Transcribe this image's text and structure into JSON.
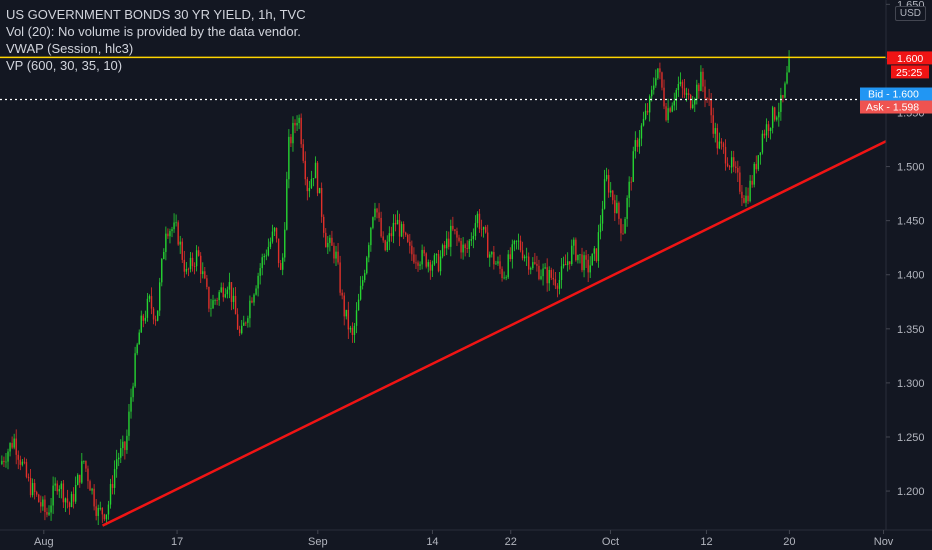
{
  "legend": {
    "title": "US GOVERNMENT BONDS 30 YR YIELD, 1h, TVC",
    "vol": "Vol (20): No volume is provided by the data vendor.",
    "vwap": "VWAP (Session, hlc3)",
    "vp": "VP (600, 30, 35, 10)"
  },
  "currency": "USD",
  "price_tags": {
    "last": "1.600",
    "countdown": "25:25",
    "bid": "Bid - 1.600",
    "ask": "Ask - 1.598"
  },
  "colors": {
    "background": "#131722",
    "up": "#26d432",
    "down": "#e0302a",
    "trendline": "#f01414",
    "hline": "#ffd400",
    "bid": "#2196f3",
    "ask": "#ef5350"
  },
  "chart_data": {
    "type": "candlestick",
    "symbol": "US GOVERNMENT BONDS 30 YR YIELD",
    "interval": "1h",
    "y_ticks": [
      "1.200",
      "1.250",
      "1.300",
      "1.350",
      "1.400",
      "1.450",
      "1.500",
      "1.550",
      "1.600",
      "1.650"
    ],
    "x_ticks": [
      {
        "label": "Aug",
        "position": 0.047
      },
      {
        "label": "17",
        "position": 0.19
      },
      {
        "label": "Sep",
        "position": 0.341
      },
      {
        "label": "14",
        "position": 0.464
      },
      {
        "label": "22",
        "position": 0.548
      },
      {
        "label": "Oct",
        "position": 0.655
      },
      {
        "label": "12",
        "position": 0.758
      },
      {
        "label": "20",
        "position": 0.847
      },
      {
        "label": "Nov",
        "position": 0.948
      }
    ],
    "ylim": [
      1.164,
      1.654
    ],
    "price_path": [
      [
        0.0,
        1.225
      ],
      [
        0.015,
        1.248
      ],
      [
        0.03,
        1.208
      ],
      [
        0.05,
        1.178
      ],
      [
        0.062,
        1.21
      ],
      [
        0.075,
        1.185
      ],
      [
        0.09,
        1.228
      ],
      [
        0.105,
        1.18
      ],
      [
        0.115,
        1.182
      ],
      [
        0.125,
        1.23
      ],
      [
        0.135,
        1.24
      ],
      [
        0.142,
        1.3
      ],
      [
        0.15,
        1.35
      ],
      [
        0.16,
        1.375
      ],
      [
        0.168,
        1.36
      ],
      [
        0.178,
        1.445
      ],
      [
        0.19,
        1.44
      ],
      [
        0.2,
        1.4
      ],
      [
        0.212,
        1.42
      ],
      [
        0.225,
        1.37
      ],
      [
        0.245,
        1.395
      ],
      [
        0.258,
        1.34
      ],
      [
        0.268,
        1.375
      ],
      [
        0.282,
        1.415
      ],
      [
        0.295,
        1.44
      ],
      [
        0.302,
        1.395
      ],
      [
        0.31,
        1.52
      ],
      [
        0.32,
        1.55
      ],
      [
        0.33,
        1.48
      ],
      [
        0.338,
        1.5
      ],
      [
        0.35,
        1.43
      ],
      [
        0.36,
        1.42
      ],
      [
        0.368,
        1.37
      ],
      [
        0.378,
        1.34
      ],
      [
        0.39,
        1.4
      ],
      [
        0.402,
        1.47
      ],
      [
        0.412,
        1.42
      ],
      [
        0.425,
        1.45
      ],
      [
        0.44,
        1.42
      ],
      [
        0.455,
        1.415
      ],
      [
        0.47,
        1.41
      ],
      [
        0.485,
        1.44
      ],
      [
        0.5,
        1.42
      ],
      [
        0.512,
        1.455
      ],
      [
        0.525,
        1.42
      ],
      [
        0.54,
        1.4
      ],
      [
        0.555,
        1.43
      ],
      [
        0.57,
        1.41
      ],
      [
        0.585,
        1.4
      ],
      [
        0.6,
        1.395
      ],
      [
        0.615,
        1.425
      ],
      [
        0.63,
        1.405
      ],
      [
        0.64,
        1.42
      ],
      [
        0.65,
        1.49
      ],
      [
        0.66,
        1.465
      ],
      [
        0.668,
        1.44
      ],
      [
        0.675,
        1.48
      ],
      [
        0.682,
        1.52
      ],
      [
        0.69,
        1.54
      ],
      [
        0.698,
        1.56
      ],
      [
        0.705,
        1.595
      ],
      [
        0.715,
        1.55
      ],
      [
        0.728,
        1.575
      ],
      [
        0.74,
        1.56
      ],
      [
        0.752,
        1.58
      ],
      [
        0.76,
        1.56
      ],
      [
        0.77,
        1.52
      ],
      [
        0.78,
        1.51
      ],
      [
        0.79,
        1.49
      ],
      [
        0.8,
        1.47
      ],
      [
        0.808,
        1.49
      ],
      [
        0.818,
        1.53
      ],
      [
        0.828,
        1.545
      ],
      [
        0.84,
        1.56
      ],
      [
        0.848,
        1.6
      ]
    ],
    "trendline": {
      "start": [
        0.11,
        1.168
      ],
      "end": [
        0.952,
        1.524
      ]
    },
    "horizontal_line": 1.601,
    "current_price": 1.6,
    "bid": 1.6,
    "ask": 1.598
  }
}
